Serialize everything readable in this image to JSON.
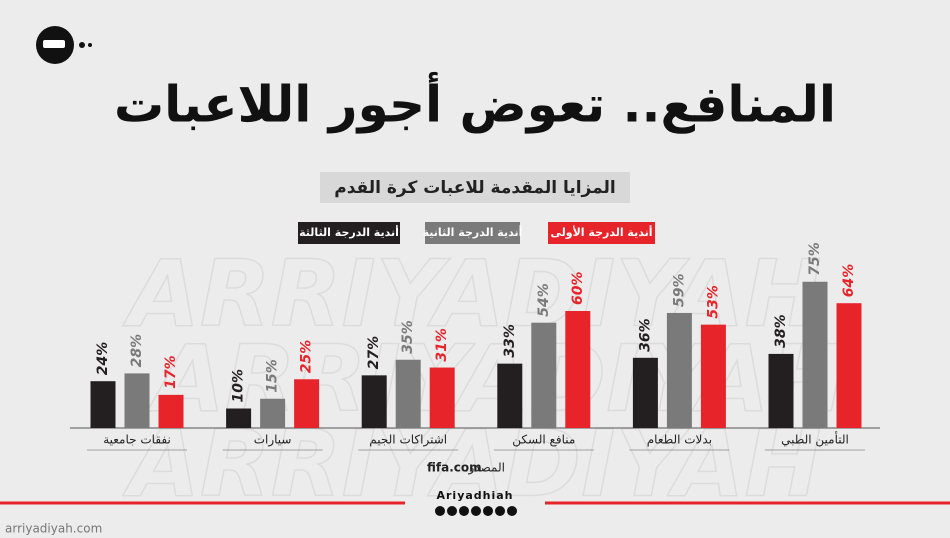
{
  "chart_data": {
    "type": "bar",
    "title": "المنافع.. تعوض أجور اللاعبات",
    "subtitle": "المزايا المقدمة للاعبات كرة القدم",
    "watermark": "ARRIYADIYAH",
    "categories": [
      "التأمين الطبي",
      "بدلات الطعام",
      "منافع السكن",
      "اشتراكات الجيم",
      "سيارات",
      "نفقات جامعية"
    ],
    "series": [
      {
        "name": "أندية الدرجة الأولى",
        "color": "#e8242b",
        "values": [
          64,
          53,
          60,
          31,
          25,
          17
        ],
        "value_labels": [
          "64%",
          "53%",
          "60%",
          "31%",
          "25%",
          "17%"
        ]
      },
      {
        "name": "أندية الدرجة الثانية",
        "color": "#7a7a7a",
        "values": [
          75,
          59,
          54,
          35,
          15,
          28
        ],
        "value_labels": [
          "75%",
          "59%",
          "54%",
          "35%",
          "15%",
          "28%"
        ]
      },
      {
        "name": "أندية الدرجة الثالثة",
        "color": "#231f20",
        "values": [
          38,
          36,
          33,
          27,
          10,
          24
        ],
        "value_labels": [
          "38%",
          "36%",
          "33%",
          "27%",
          "10%",
          "24%"
        ]
      }
    ],
    "source_label": "المصدر:",
    "source": "fifa.com",
    "brand": "Ariyadhiah",
    "website": "arriyadiyah.com"
  }
}
